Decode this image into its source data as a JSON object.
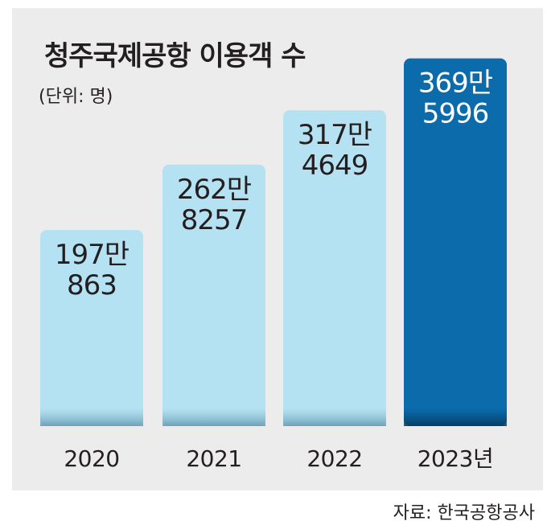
{
  "chart_data": {
    "type": "bar",
    "title": "청주국제공항 이용객 수",
    "subtitle": "(단위: 명)",
    "source": "자료: 한국공항공사",
    "categories": [
      "2020",
      "2021",
      "2022",
      "2023년"
    ],
    "values": [
      1970863,
      2628257,
      3174649,
      3695996
    ],
    "value_labels": [
      [
        "197만",
        "863"
      ],
      [
        "262만",
        "8257"
      ],
      [
        "317만",
        "4649"
      ],
      [
        "369만",
        "5996"
      ]
    ],
    "ylim": [
      0,
      4000000
    ],
    "grid": false,
    "colors": {
      "bar": "#b5e2f3",
      "bar_highlight": "#0b6bab",
      "label": "#231f20",
      "label_highlight": "#ffffff",
      "panel": "#ececec"
    },
    "highlight_index": 3
  }
}
